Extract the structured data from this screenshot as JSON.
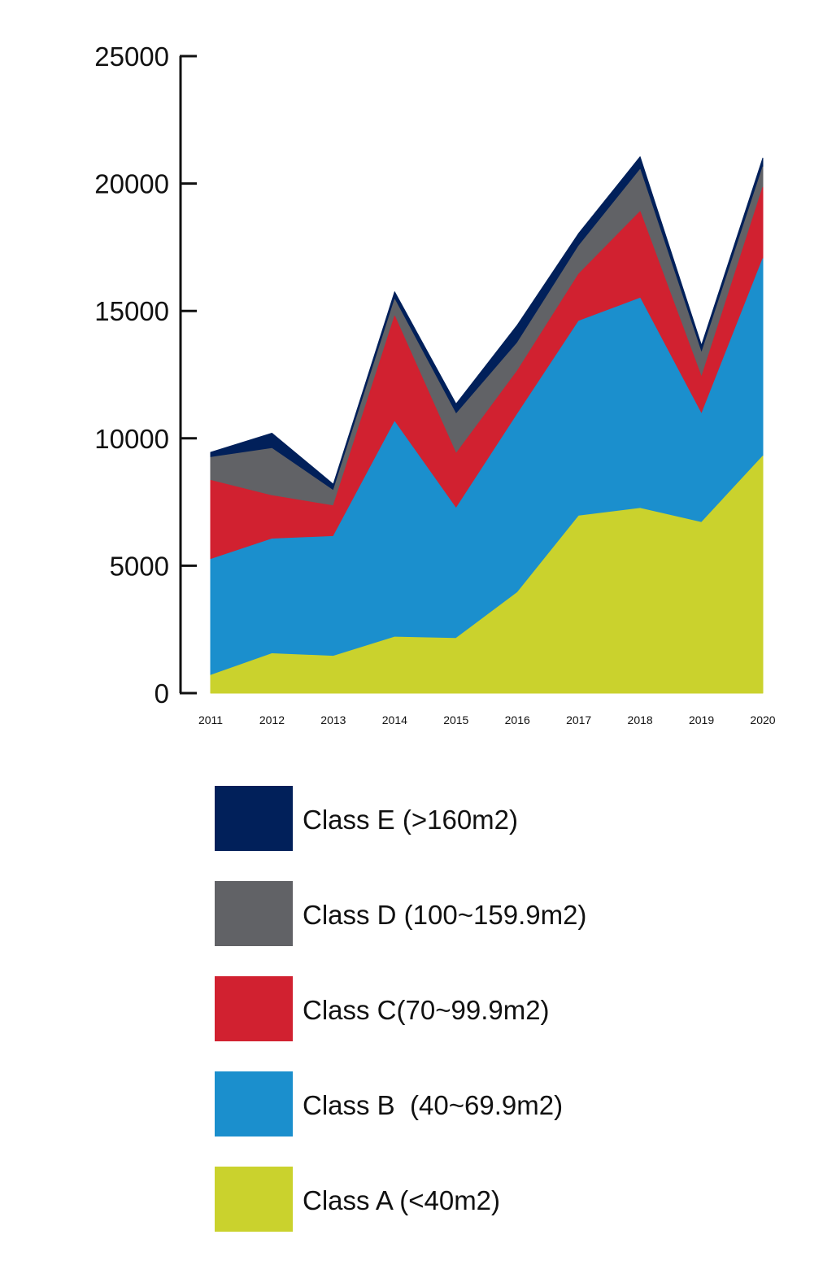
{
  "chart_data": {
    "type": "area",
    "stacked": true,
    "title": "",
    "xlabel": "",
    "ylabel": "",
    "categories": [
      "2011",
      "2012",
      "2013",
      "2014",
      "2015",
      "2016",
      "2017",
      "2018",
      "2019",
      "2020"
    ],
    "ylim": [
      0,
      25000
    ],
    "yticks": [
      0,
      5000,
      10000,
      15000,
      20000,
      25000
    ],
    "ytick_labels": [
      "0",
      "5000",
      "10000",
      "15000",
      "20000",
      "25000"
    ],
    "grid": false,
    "legend_position": "bottom",
    "series": [
      {
        "key": "A",
        "name": "Class A (<40m2)",
        "color": "#cad22d",
        "values": [
          700,
          1550,
          1450,
          2200,
          2150,
          3950,
          6950,
          7250,
          6700,
          9300
        ]
      },
      {
        "key": "B",
        "name": "Class B  (40~69.9m2)",
        "color": "#1b8fcd",
        "values": [
          4550,
          4500,
          4700,
          8450,
          5100,
          7000,
          7650,
          8250,
          4250,
          7750
        ]
      },
      {
        "key": "C",
        "name": "Class C(70~99.9m2)",
        "color": "#d12130",
        "values": [
          3100,
          1700,
          1200,
          4150,
          2150,
          1700,
          1850,
          3400,
          1450,
          2800
        ]
      },
      {
        "key": "D",
        "name": "Class D (100~159.9m2)",
        "color": "#616266",
        "values": [
          900,
          1850,
          600,
          650,
          1550,
          1100,
          1100,
          1650,
          950,
          800
        ]
      },
      {
        "key": "E",
        "name": "Class E (>160m2)",
        "color": "#01205a",
        "values": [
          200,
          600,
          250,
          300,
          400,
          700,
          500,
          500,
          300,
          350
        ]
      }
    ],
    "legend_order": [
      "E",
      "D",
      "C",
      "B",
      "A"
    ]
  }
}
